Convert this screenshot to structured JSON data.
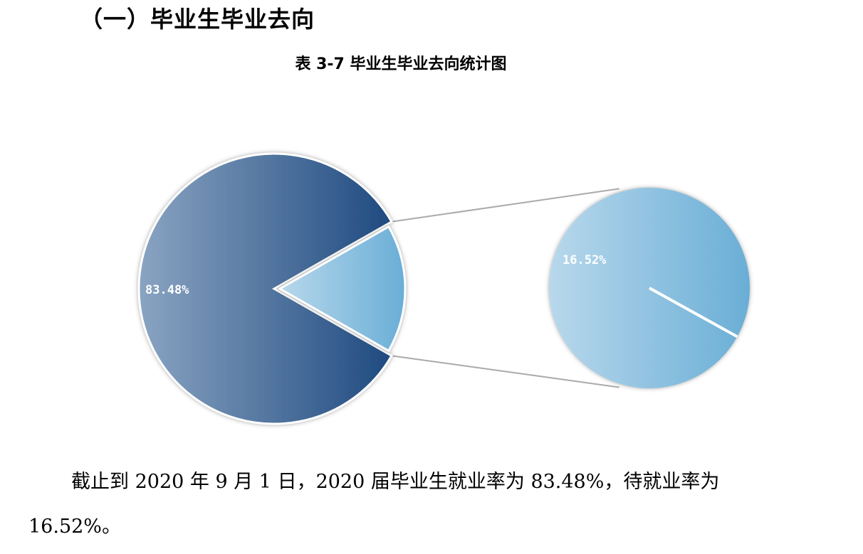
{
  "heading": "（一）毕业生毕业去向",
  "caption": "表 3-7 毕业生毕业去向统计图",
  "paragraph": {
    "line1": "截止到 2020 年 9 月 1 日，2020 届毕业生就业率为 83.48%，待就业率为",
    "line2": "16.52%。"
  },
  "chart_data": {
    "type": "pie",
    "subtype": "pie-of-pie",
    "title": "",
    "slices": [
      {
        "label": "83.48%",
        "value": 83.48,
        "color": "#3f6a9a"
      },
      {
        "label": "16.52%",
        "value": 16.52,
        "color": "#7fb8da"
      }
    ],
    "legend": "none"
  }
}
